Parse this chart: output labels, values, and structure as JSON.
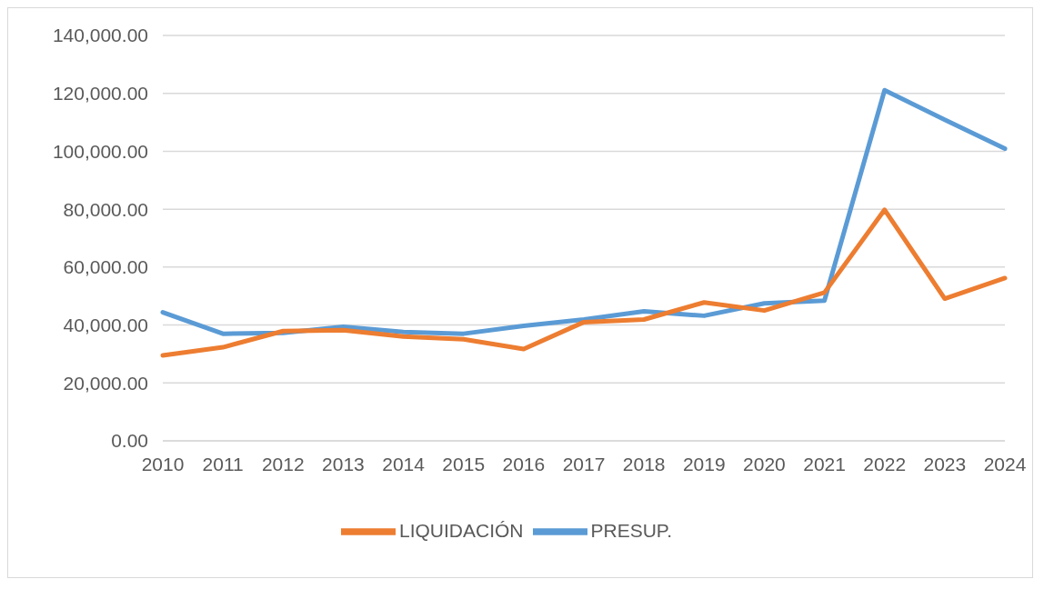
{
  "chart_data": {
    "type": "line",
    "categories": [
      "2010",
      "2011",
      "2012",
      "2013",
      "2014",
      "2015",
      "2016",
      "2017",
      "2018",
      "2019",
      "2020",
      "2021",
      "2022",
      "2023",
      "2024"
    ],
    "series": [
      {
        "name": "PRESUP.",
        "color": "#5b9bd5",
        "values": [
          44400,
          37000,
          37300,
          39400,
          37600,
          37000,
          39700,
          41900,
          44700,
          43200,
          47500,
          48400,
          121100,
          110900,
          100900
        ]
      },
      {
        "name": "LIQUIDACIÓN",
        "color": "#ed7d31",
        "values": [
          29500,
          32300,
          37900,
          38200,
          36000,
          35100,
          31700,
          41000,
          41900,
          47800,
          45000,
          51200,
          79800,
          49100,
          56200
        ]
      }
    ],
    "ylim": [
      0,
      140000
    ],
    "yticks": [
      {
        "value": 0,
        "label": "0.00"
      },
      {
        "value": 20000,
        "label": "20,000.00"
      },
      {
        "value": 40000,
        "label": "40,000.00"
      },
      {
        "value": 60000,
        "label": "60,000.00"
      },
      {
        "value": 80000,
        "label": "80,000.00"
      },
      {
        "value": 100000,
        "label": "100,000.00"
      },
      {
        "value": 120000,
        "label": "120,000.00"
      },
      {
        "value": 140000,
        "label": "140,000.00"
      }
    ],
    "grid": "y",
    "legend": "bottom",
    "marker": "none",
    "line_style": "solid"
  }
}
